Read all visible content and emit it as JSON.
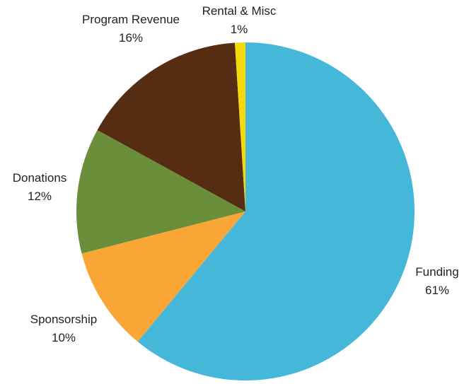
{
  "chart_data": {
    "type": "pie",
    "title": "",
    "slices": [
      {
        "label": "Funding",
        "value": 61,
        "value_label": "61%",
        "color": "#45b8d9"
      },
      {
        "label": "Sponsorship",
        "value": 10,
        "value_label": "10%",
        "color": "#f9a637"
      },
      {
        "label": "Donations",
        "value": 12,
        "value_label": "12%",
        "color": "#6b8e3a"
      },
      {
        "label": "Program Revenue",
        "value": 16,
        "value_label": "16%",
        "color": "#562d12"
      },
      {
        "label": "Rental & Misc",
        "value": 1,
        "value_label": "1%",
        "color": "#f5d90a"
      }
    ],
    "start_angle_deg": 0,
    "direction": "clockwise",
    "legend": "none"
  }
}
